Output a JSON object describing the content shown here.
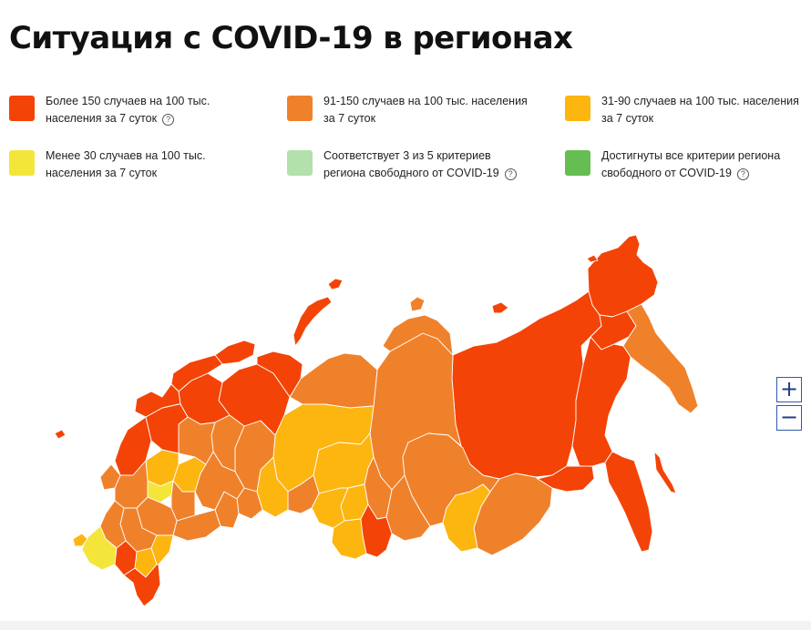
{
  "title": "Ситуация с COVID-19 в регионах",
  "colors": {
    "over150": "#f44307",
    "r91_150": "#f0812b",
    "r31_90": "#fdb510",
    "under30": "#f4e53a",
    "partial_free": "#b3e0ac",
    "free": "#66be52"
  },
  "legend": [
    {
      "key": "over150",
      "line1": "Более 150 случаев на 100 тыс.",
      "line2": "населения за 7 суток",
      "help": true,
      "help_icon": "question-circle-icon"
    },
    {
      "key": "r91_150",
      "line1": "91-150 случаев на 100 тыс. населения",
      "line2": "за 7 суток",
      "help": false
    },
    {
      "key": "r31_90",
      "line1": "31-90 случаев на 100 тыс. населения",
      "line2": "за 7 суток",
      "help": false
    },
    {
      "key": "under30",
      "line1": "Менее 30 случаев на 100 тыс.",
      "line2": "населения за 7 суток",
      "help": false
    },
    {
      "key": "partial_free",
      "line1": "Соответствует 3 из 5 критериев",
      "line2": "региона свободного от COVID-19",
      "help": true,
      "help_icon": "question-circle-icon"
    },
    {
      "key": "free",
      "line1": "Достигнуты все критерии региона",
      "line2": "свободного от COVID-19",
      "help": true,
      "help_icon": "question-circle-icon"
    }
  ],
  "help_glyph": "?",
  "zoom": {
    "in_label": "+",
    "out_label": "−"
  },
  "map": {
    "regions": [
      {
        "name": "chukotka",
        "category": "over150"
      },
      {
        "name": "yakutia",
        "category": "over150"
      },
      {
        "name": "magadan",
        "category": "over150"
      },
      {
        "name": "khabarovsk",
        "category": "over150"
      },
      {
        "name": "amur",
        "category": "over150"
      },
      {
        "name": "primorye",
        "category": "over150"
      },
      {
        "name": "sakhalin",
        "category": "over150"
      },
      {
        "name": "kamchatka",
        "category": "r91_150"
      },
      {
        "name": "zabaykalsky",
        "category": "r91_150"
      },
      {
        "name": "krasnoyarsk",
        "category": "r91_150"
      },
      {
        "name": "taymyr",
        "category": "r91_150"
      },
      {
        "name": "yamalo-nenets",
        "category": "r91_150"
      },
      {
        "name": "khanty-mansi",
        "category": "r31_90"
      },
      {
        "name": "tomsk",
        "category": "r31_90"
      },
      {
        "name": "novosibirsk",
        "category": "r31_90"
      },
      {
        "name": "kemerovo",
        "category": "r31_90"
      },
      {
        "name": "altai",
        "category": "r31_90"
      },
      {
        "name": "altai-republic",
        "category": "over150"
      },
      {
        "name": "tuva",
        "category": "r91_150"
      },
      {
        "name": "irkutsk",
        "category": "r91_150"
      },
      {
        "name": "buryatia",
        "category": "r31_90"
      },
      {
        "name": "khakassia",
        "category": "r91_150"
      },
      {
        "name": "omsk",
        "category": "r91_150"
      },
      {
        "name": "tyumen",
        "category": "r31_90"
      },
      {
        "name": "kurgan",
        "category": "r91_150"
      },
      {
        "name": "sverdlovsk",
        "category": "r91_150"
      },
      {
        "name": "chelyabinsk",
        "category": "r91_150"
      },
      {
        "name": "komi",
        "category": "over150"
      },
      {
        "name": "nenets",
        "category": "over150"
      },
      {
        "name": "arkhangelsk",
        "category": "over150"
      },
      {
        "name": "murmansk",
        "category": "over150"
      },
      {
        "name": "karelia",
        "category": "over150"
      },
      {
        "name": "perm",
        "category": "r91_150"
      },
      {
        "name": "bashkortostan",
        "category": "r91_150"
      },
      {
        "name": "orenburg",
        "category": "r91_150"
      },
      {
        "name": "tatarstan",
        "category": "r31_90"
      },
      {
        "name": "samara",
        "category": "r91_150"
      },
      {
        "name": "saratov",
        "category": "r91_150"
      },
      {
        "name": "volgograd",
        "category": "r91_150"
      },
      {
        "name": "astrakhan",
        "category": "r31_90"
      },
      {
        "name": "kalmykia",
        "category": "r31_90"
      },
      {
        "name": "rostov",
        "category": "r91_150"
      },
      {
        "name": "krasnodar",
        "category": "under30"
      },
      {
        "name": "stavropol",
        "category": "over150"
      },
      {
        "name": "dagestan",
        "category": "over150"
      },
      {
        "name": "central-west",
        "category": "over150"
      },
      {
        "name": "moscow-area",
        "category": "r31_90"
      },
      {
        "name": "central-south",
        "category": "r91_150"
      },
      {
        "name": "penza",
        "category": "under30"
      },
      {
        "name": "kirov",
        "category": "r91_150"
      },
      {
        "name": "vologda",
        "category": "over150"
      },
      {
        "name": "leningrad",
        "category": "over150"
      },
      {
        "name": "bryansk",
        "category": "r91_150"
      },
      {
        "name": "crimea",
        "category": "r31_90"
      },
      {
        "name": "novaya-zemlya",
        "category": "over150"
      },
      {
        "name": "franz-josef",
        "category": "over150"
      },
      {
        "name": "severnaya-zemlya",
        "category": "r91_150"
      },
      {
        "name": "novosibirsk-islands",
        "category": "over150"
      },
      {
        "name": "wrangel",
        "category": "over150"
      },
      {
        "name": "kaliningrad",
        "category": "over150"
      },
      {
        "name": "kurils",
        "category": "over150"
      }
    ]
  }
}
